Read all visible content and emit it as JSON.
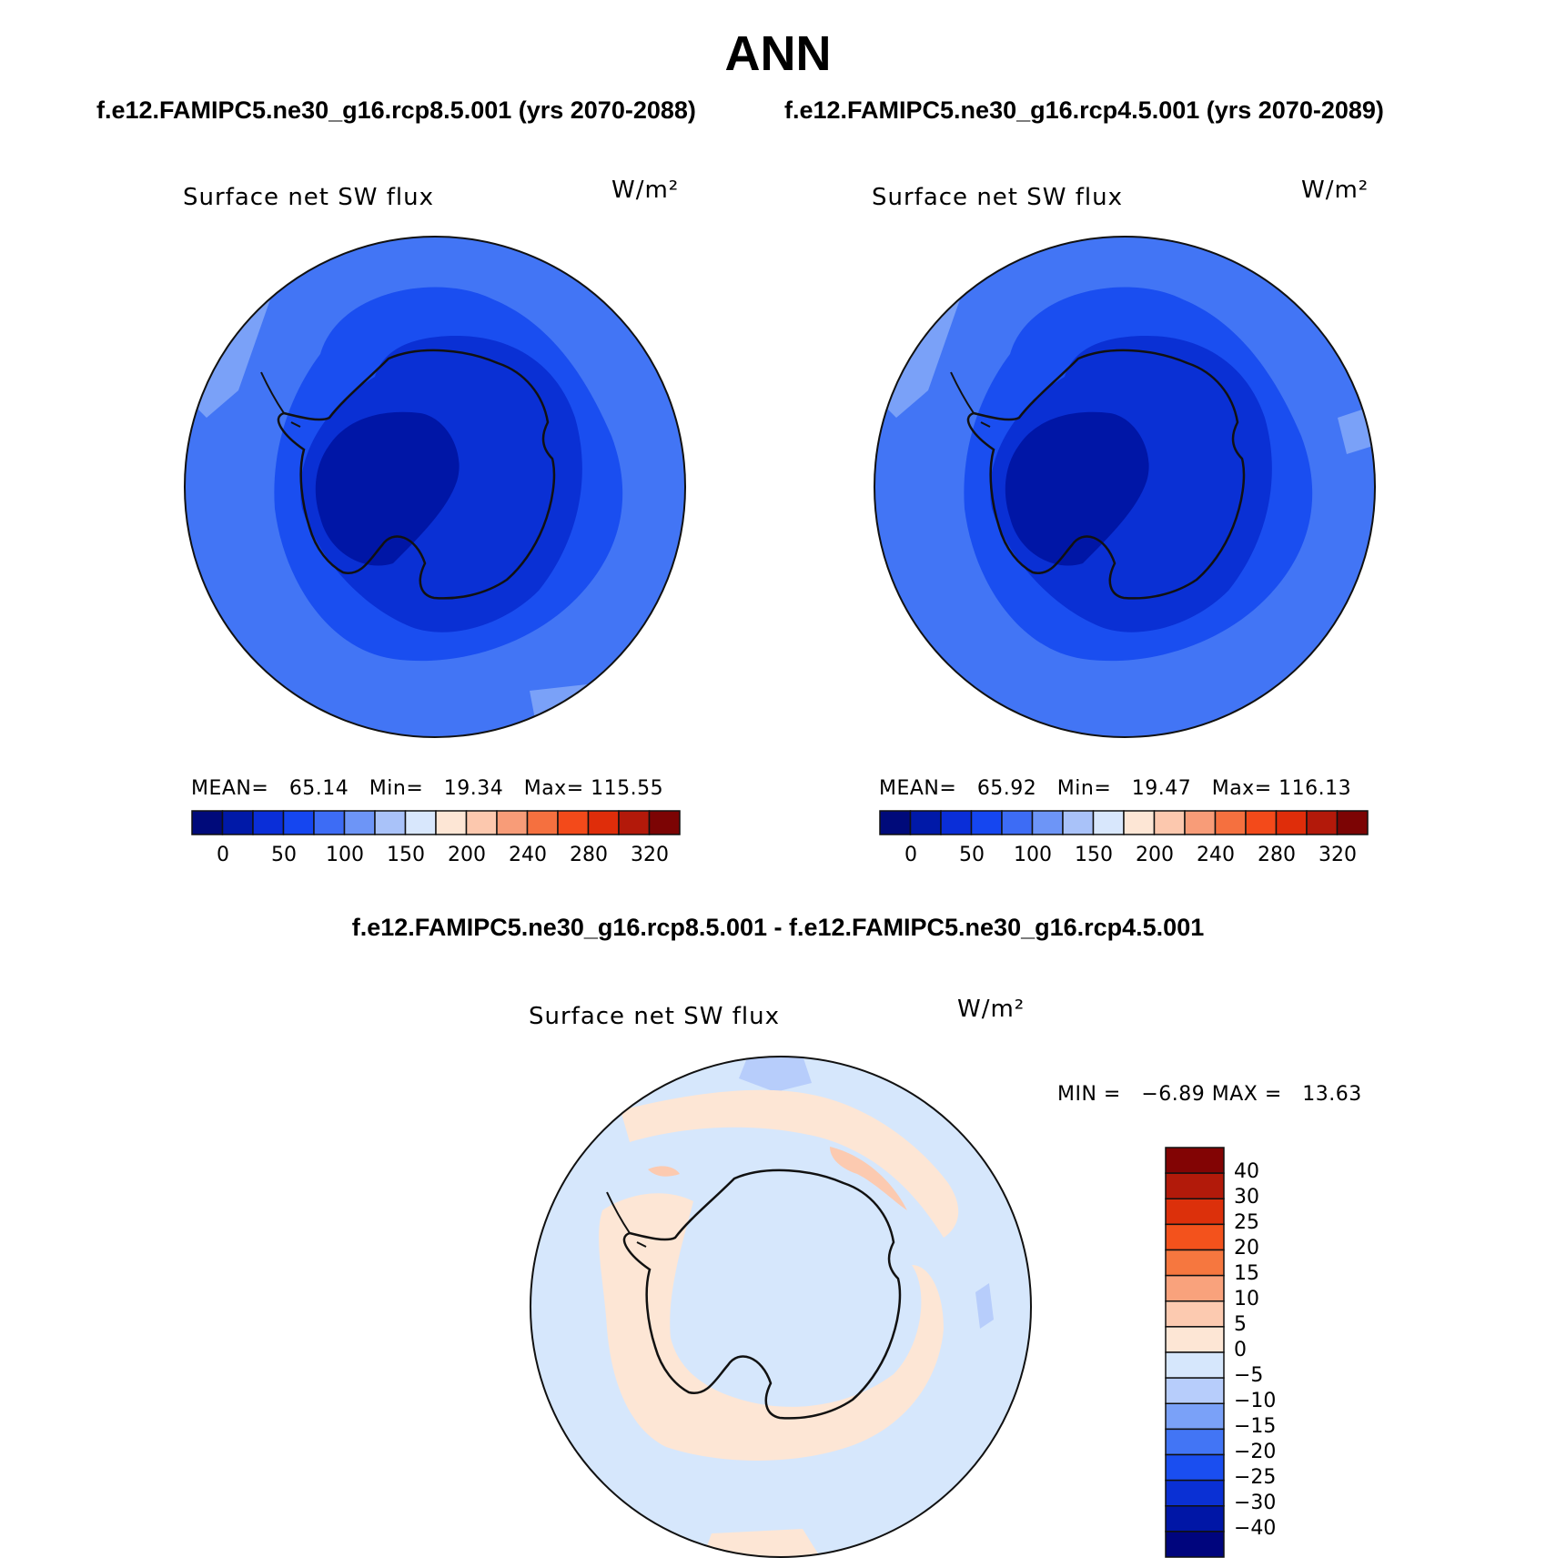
{
  "title": "ANN",
  "subtitle_left": "f.e12.FAMIPC5.ne30_g16.rcp8.5.001 (yrs 2070-2088)",
  "subtitle_right": "f.e12.FAMIPC5.ne30_g16.rcp4.5.001 (yrs 2070-2089)",
  "diff_title": "f.e12.FAMIPC5.ne30_g16.rcp8.5.001 - f.e12.FAMIPC5.ne30_g16.rcp4.5.001",
  "panels": [
    {
      "variable": "Surface net SW flux",
      "units": "W/m²",
      "mean_label": "MEAN=",
      "mean": "65.14",
      "min_label": "Min=",
      "min": "19.34",
      "max_label": "Max=",
      "max": "115.55"
    },
    {
      "variable": "Surface net SW flux",
      "units": "W/m²",
      "mean_label": "MEAN=",
      "mean": "65.92",
      "min_label": "Min=",
      "min": "19.47",
      "max_label": "Max=",
      "max": "116.13"
    }
  ],
  "diff_panel": {
    "variable": "Surface net SW flux",
    "units": "W/m²",
    "min_label": "MIN =",
    "min": "−6.89",
    "max_label": "MAX =",
    "max": "13.63"
  },
  "colorbar_abs": {
    "colors": [
      "#000a7a",
      "#0019a8",
      "#0a2ed8",
      "#1546f0",
      "#3d6cf5",
      "#6d95f7",
      "#a9c2f9",
      "#d8e7fc",
      "#fde6d5",
      "#fcc8ae",
      "#f89c78",
      "#f5703f",
      "#f34a1a",
      "#df2d0a",
      "#b3190a",
      "#7c0404"
    ],
    "ticks": [
      "0",
      "50",
      "100",
      "150",
      "200",
      "240",
      "280",
      "320"
    ]
  },
  "colorbar_diff": {
    "colors": [
      "#00057d",
      "#0016a6",
      "#0a30d4",
      "#1a4ef0",
      "#4275f5",
      "#7aa1f8",
      "#b7cdfb",
      "#d6e7fc",
      "#fde6d5",
      "#fccab0",
      "#f9a27c",
      "#f6773f",
      "#f3521c",
      "#dc300b",
      "#b21a0a",
      "#820404"
    ],
    "ticks": [
      "40",
      "30",
      "25",
      "20",
      "15",
      "10",
      "5",
      "0",
      "−5",
      "−10",
      "−15",
      "−20",
      "−25",
      "−30",
      "−40"
    ]
  }
}
